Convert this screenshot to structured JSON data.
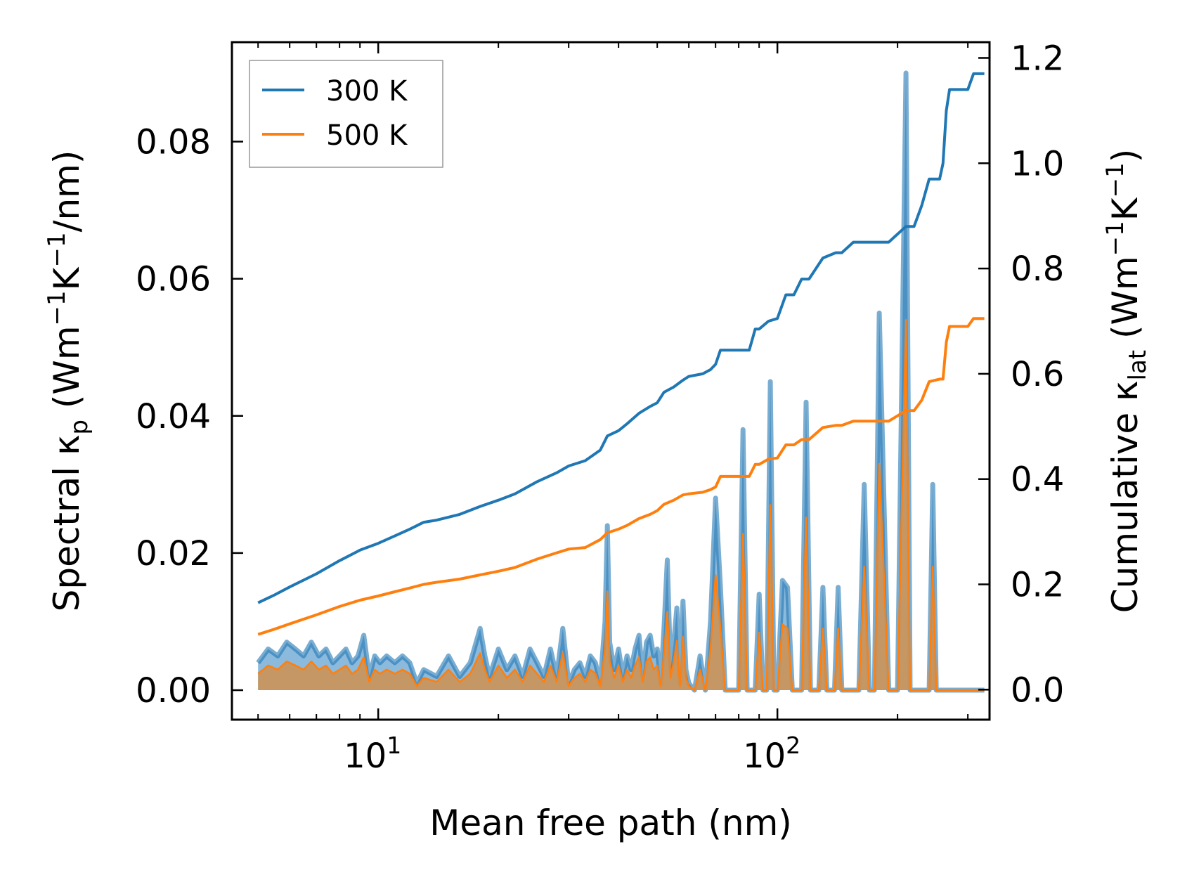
{
  "chart_data": {
    "type": "line",
    "xlabel": "Mean free path (nm)",
    "xscale": "log",
    "xlim": [
      4.3,
      340
    ],
    "x_ticks": [
      {
        "value": 10,
        "base": "10",
        "exp": "1"
      },
      {
        "value": 100,
        "base": "10",
        "exp": "2"
      }
    ],
    "left_axis": {
      "label_pre": "Spectral κ",
      "label_sub": "p",
      "label_mid": " (Wm",
      "label_sup1": "−1",
      "label_mid2": "K",
      "label_sup2": "−1",
      "label_post": "/nm)",
      "ylim": [
        -0.0043,
        0.0945
      ],
      "ticks": [
        "0.00",
        "0.02",
        "0.04",
        "0.06",
        "0.08"
      ]
    },
    "right_axis": {
      "label_pre": "Cumulative κ",
      "label_sub": "lat",
      "label_mid": " (Wm",
      "label_sup1": "−1",
      "label_mid2": "K",
      "label_sup2": "−1",
      "label_post": ")",
      "ylim": [
        -0.057,
        1.23
      ],
      "ticks": [
        "0.0",
        "0.2",
        "0.4",
        "0.6",
        "0.8",
        "1.0",
        "1.2"
      ]
    },
    "series": [
      {
        "name": "300 K",
        "color": "#1f77b4",
        "cumulative": {
          "x": [
            5,
            5.5,
            6,
            7,
            8,
            9,
            10,
            11,
            12,
            13,
            14,
            16,
            18,
            20,
            22,
            25,
            28,
            30,
            33,
            36,
            37.5,
            40,
            42,
            45,
            48,
            50,
            52,
            55,
            58,
            60,
            65,
            68,
            70,
            72,
            75,
            78,
            85,
            88,
            90,
            95,
            100,
            105,
            110,
            115,
            120,
            130,
            140,
            145,
            155,
            170,
            190,
            210,
            220,
            230,
            240,
            255,
            260,
            265,
            270,
            275,
            290,
            300,
            310,
            320,
            330
          ],
          "y": [
            0.165,
            0.18,
            0.195,
            0.22,
            0.245,
            0.265,
            0.278,
            0.292,
            0.305,
            0.318,
            0.322,
            0.333,
            0.348,
            0.36,
            0.372,
            0.395,
            0.412,
            0.425,
            0.435,
            0.455,
            0.482,
            0.492,
            0.505,
            0.525,
            0.538,
            0.545,
            0.565,
            0.575,
            0.588,
            0.595,
            0.6,
            0.608,
            0.618,
            0.645,
            0.645,
            0.645,
            0.645,
            0.685,
            0.685,
            0.7,
            0.705,
            0.75,
            0.75,
            0.78,
            0.78,
            0.82,
            0.83,
            0.83,
            0.85,
            0.85,
            0.85,
            0.88,
            0.88,
            0.92,
            0.97,
            0.97,
            1.0,
            1.1,
            1.14,
            1.14,
            1.14,
            1.14,
            1.17,
            1.17,
            1.17
          ],
          "legend_label": "300 K"
        },
        "spectral": {
          "x": [
            5,
            5.3,
            5.6,
            5.9,
            6.2,
            6.5,
            6.8,
            7.1,
            7.4,
            7.7,
            8,
            8.3,
            8.6,
            8.9,
            9.2,
            9.5,
            9.8,
            10.1,
            10.5,
            11,
            11.5,
            12,
            12.5,
            13,
            14,
            15,
            16,
            17,
            18,
            18.5,
            19,
            20,
            21,
            22,
            23,
            24,
            25,
            26,
            27,
            28,
            29,
            30,
            31,
            32,
            33,
            34,
            35,
            36,
            37,
            37.5,
            38,
            39,
            40,
            41,
            42,
            43,
            44,
            45,
            46,
            47,
            48,
            49,
            50,
            51,
            52,
            53,
            54,
            55,
            56,
            57,
            58,
            59,
            60,
            62,
            64,
            66,
            68,
            70,
            72,
            74,
            76,
            78,
            80,
            82,
            84,
            86,
            88,
            90,
            92,
            94,
            96,
            98,
            100,
            103,
            106,
            109,
            112,
            115,
            118,
            121,
            124,
            127,
            130,
            133,
            136,
            139,
            142,
            145,
            150,
            155,
            160,
            165,
            170,
            175,
            180,
            190,
            200,
            210,
            215,
            220,
            225,
            230,
            240,
            245,
            250,
            255,
            258,
            262,
            266,
            270,
            274,
            278,
            282,
            286,
            290,
            300,
            310,
            315,
            320,
            325,
            330
          ],
          "y": [
            0.004,
            0.006,
            0.005,
            0.007,
            0.006,
            0.005,
            0.007,
            0.005,
            0.006,
            0.004,
            0.005,
            0.006,
            0.004,
            0.005,
            0.008,
            0.002,
            0.005,
            0.004,
            0.005,
            0.004,
            0.005,
            0.004,
            0.001,
            0.003,
            0.002,
            0.005,
            0.002,
            0.004,
            0.009,
            0.005,
            0.002,
            0.006,
            0.003,
            0.005,
            0.002,
            0.006,
            0.004,
            0.002,
            0.006,
            0.002,
            0.009,
            0.001,
            0.003,
            0.004,
            0.002,
            0.005,
            0.004,
            0.001,
            0.01,
            0.024,
            0.007,
            0.003,
            0.006,
            0.002,
            0.005,
            0.003,
            0.006,
            0.008,
            0.002,
            0.007,
            0.008,
            0.005,
            0.006,
            0.001,
            0.009,
            0.019,
            0.003,
            0.007,
            0.012,
            0.001,
            0.013,
            0.003,
            0.001,
            0.0,
            0.005,
            0.0,
            0.01,
            0.028,
            0.015,
            0.0,
            0.0,
            0.0,
            0.0,
            0.038,
            0.0,
            0.0,
            0.0,
            0.014,
            0.0,
            0.0,
            0.045,
            0.0,
            0.0,
            0.016,
            0.015,
            0.0,
            0.0,
            0.0,
            0.042,
            0.0,
            0.0,
            0.0,
            0.015,
            0.0,
            0.0,
            0.0,
            0.015,
            0.0,
            0.0,
            0.0,
            0.0,
            0.03,
            0.0,
            0.0,
            0.055,
            0.0,
            0.0,
            0.09,
            0.0,
            0.0,
            0.0,
            0.0,
            0.0,
            0.03,
            0.0,
            0.0,
            0.0,
            0.0,
            0.0,
            0.0,
            0.0,
            0.0,
            0.0,
            0.0,
            0.0,
            0.0,
            0.0,
            0.0,
            0.0,
            0.0,
            0.0
          ]
        }
      },
      {
        "name": "500 K",
        "color": "#ff7f0e",
        "cumulative": {
          "x": [
            5,
            5.5,
            6,
            7,
            8,
            9,
            10,
            11,
            12,
            13,
            14,
            16,
            18,
            20,
            22,
            25,
            28,
            30,
            33,
            36,
            37.5,
            40,
            42,
            45,
            48,
            50,
            52,
            55,
            58,
            60,
            65,
            68,
            70,
            72,
            75,
            78,
            85,
            88,
            90,
            95,
            100,
            105,
            110,
            115,
            120,
            130,
            140,
            145,
            155,
            170,
            190,
            210,
            220,
            230,
            240,
            255,
            260,
            265,
            270,
            275,
            290,
            300,
            310,
            320,
            330
          ],
          "y": [
            0.105,
            0.115,
            0.125,
            0.142,
            0.158,
            0.17,
            0.178,
            0.186,
            0.193,
            0.2,
            0.204,
            0.21,
            0.218,
            0.225,
            0.232,
            0.248,
            0.26,
            0.267,
            0.27,
            0.285,
            0.298,
            0.305,
            0.312,
            0.325,
            0.333,
            0.34,
            0.352,
            0.36,
            0.37,
            0.372,
            0.375,
            0.38,
            0.385,
            0.405,
            0.405,
            0.405,
            0.405,
            0.428,
            0.428,
            0.438,
            0.44,
            0.465,
            0.465,
            0.475,
            0.475,
            0.498,
            0.502,
            0.502,
            0.51,
            0.51,
            0.51,
            0.53,
            0.53,
            0.55,
            0.585,
            0.59,
            0.59,
            0.66,
            0.69,
            0.69,
            0.69,
            0.69,
            0.705,
            0.705,
            0.705
          ],
          "legend_label": "500 K"
        },
        "spectral_scale": 0.6
      }
    ],
    "legend": {
      "position": "top-left",
      "entries": [
        "300 K",
        "500 K"
      ]
    }
  },
  "colors": {
    "s300": "#1f77b4",
    "s500": "#ff7f0e",
    "fill300": "#7fb3d9",
    "fill500": "#c8955d"
  }
}
